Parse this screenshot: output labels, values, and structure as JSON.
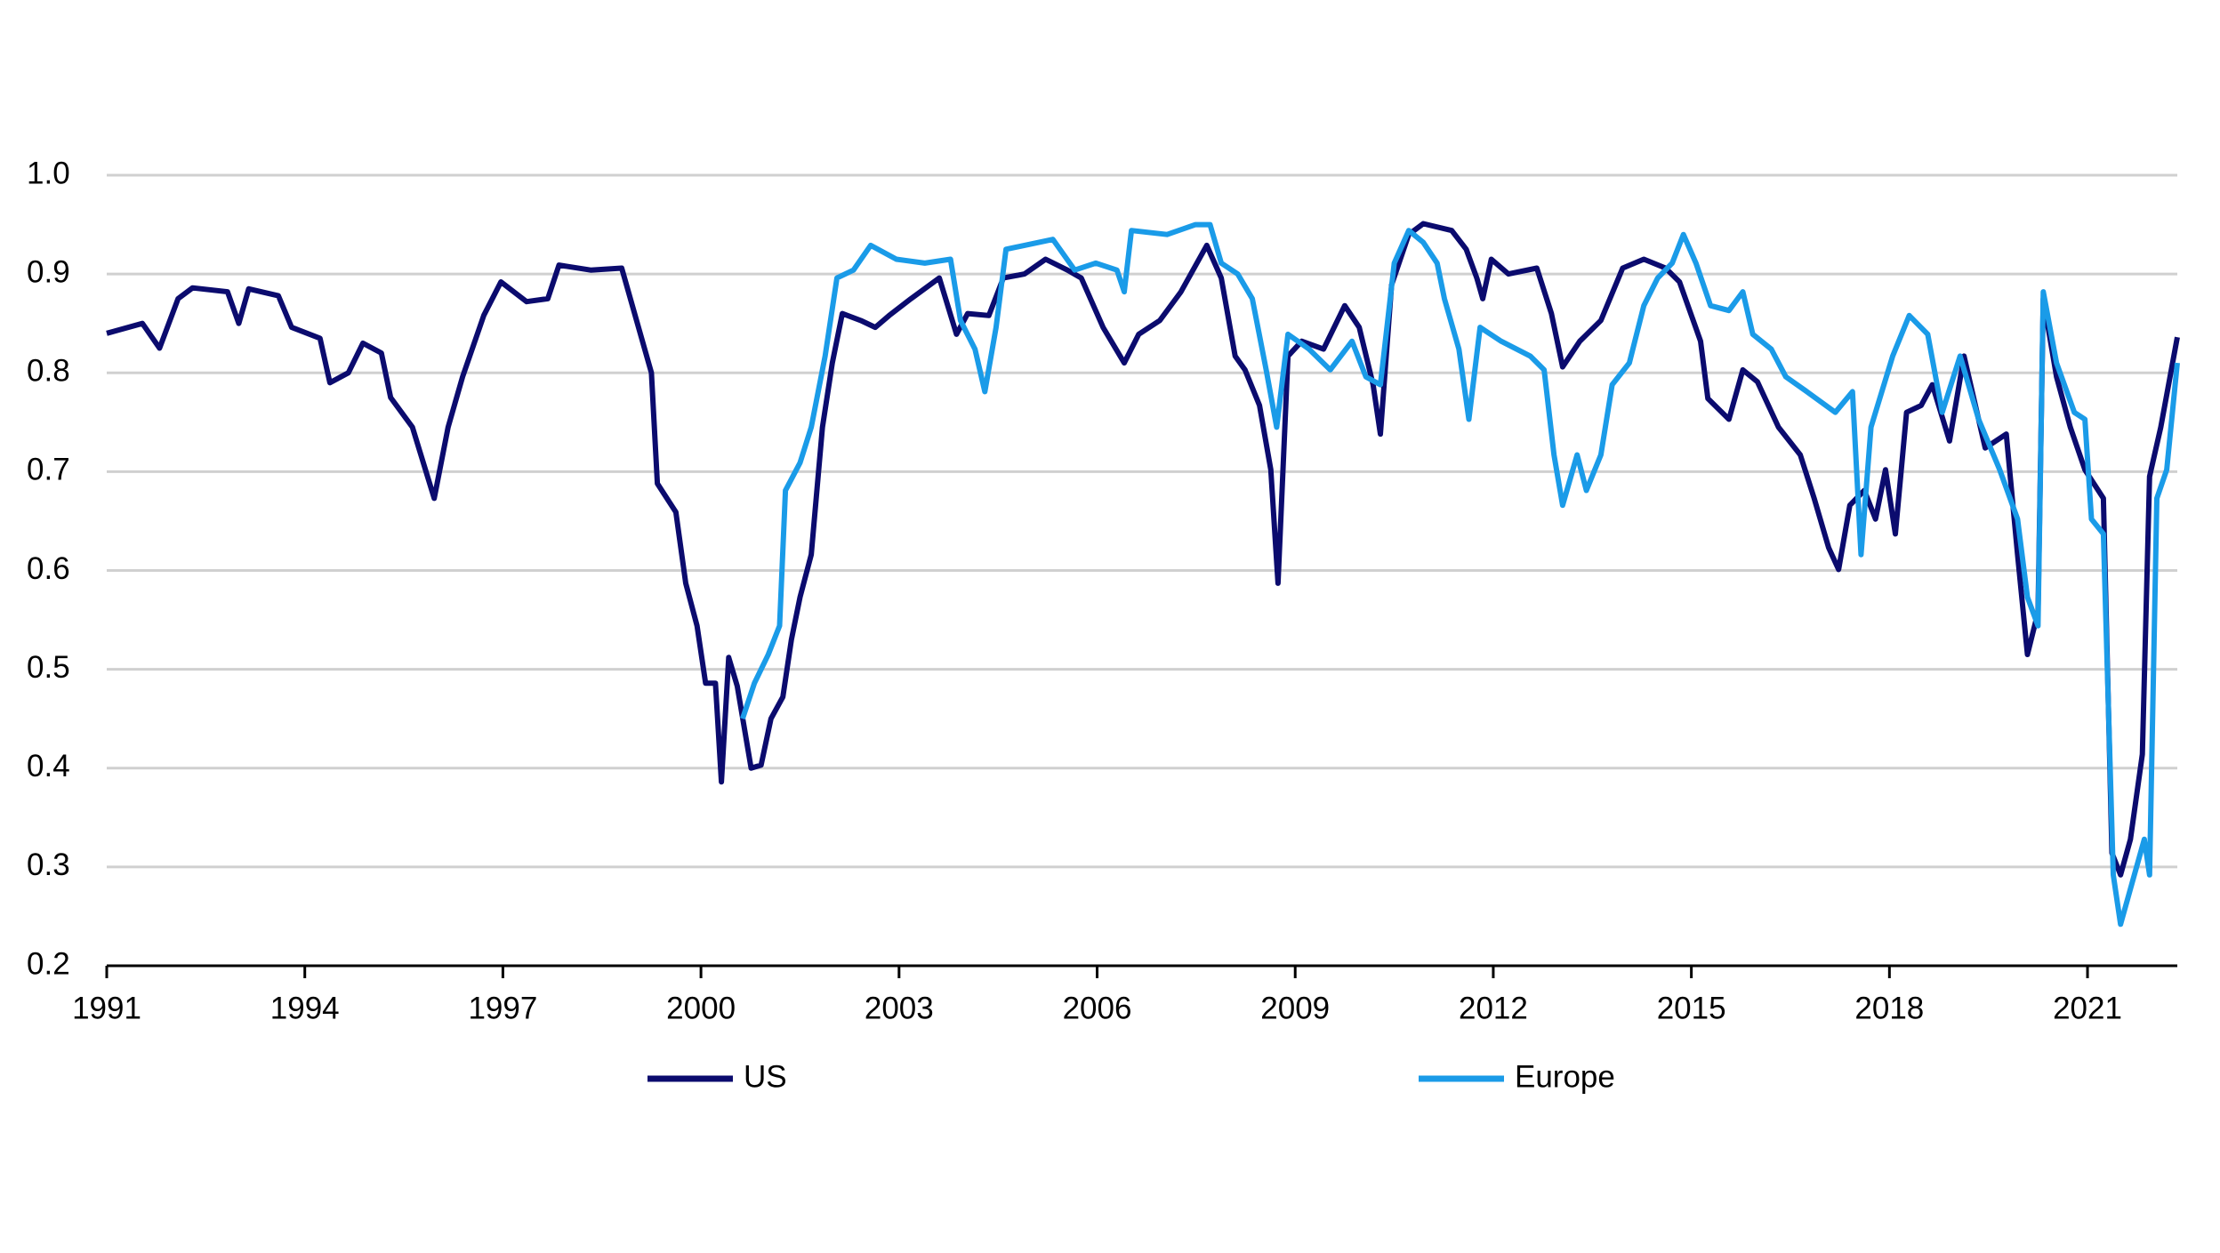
{
  "chart_data": {
    "type": "line",
    "xlim": [
      1991,
      2022.36
    ],
    "xticks": [
      1991,
      1994,
      1997,
      2000,
      2003,
      2006,
      2009,
      2012,
      2015,
      2018,
      2021
    ],
    "ylim": [
      0.2,
      1.0
    ],
    "yticks": [
      0.2,
      0.3,
      0.4,
      0.5,
      0.6,
      0.7,
      0.8,
      0.9,
      {
        "value": 1,
        "label": "1.0"
      }
    ],
    "grid": true,
    "legend": "bottom",
    "series": [
      {
        "name": "US",
        "color": "#0b0b6e",
        "x": [
          1991.0,
          1991.54,
          1991.8,
          1992.08,
          1992.3,
          1992.83,
          1993.0,
          1993.15,
          1993.6,
          1993.8,
          1994.23,
          1994.38,
          1994.66,
          1994.88,
          1995.16,
          1995.3,
          1995.63,
          1995.96,
          1996.17,
          1996.39,
          1996.71,
          1996.97,
          1997.36,
          1997.68,
          1997.85,
          1998.33,
          1998.8,
          1999.08,
          1999.25,
          1999.34,
          1999.62,
          1999.77,
          1999.94,
          2000.07,
          2000.22,
          2000.31,
          2000.42,
          2000.55,
          2000.76,
          2000.91,
          2001.06,
          2001.24,
          2001.37,
          2001.5,
          2001.67,
          2001.84,
          2001.99,
          2002.14,
          2002.42,
          2002.64,
          2002.85,
          2003.18,
          2003.61,
          2003.87,
          2004.04,
          2004.36,
          2004.58,
          2004.9,
          2005.22,
          2005.55,
          2005.76,
          2006.09,
          2006.41,
          2006.63,
          2006.95,
          2007.27,
          2007.66,
          2007.88,
          2008.09,
          2008.24,
          2008.46,
          2008.63,
          2008.74,
          2008.89,
          2009.1,
          2009.43,
          2009.75,
          2009.97,
          2010.18,
          2010.29,
          2010.46,
          2010.72,
          2010.94,
          2011.37,
          2011.59,
          2011.75,
          2011.84,
          2011.97,
          2012.23,
          2012.66,
          2012.88,
          2013.05,
          2013.31,
          2013.63,
          2013.96,
          2014.28,
          2014.61,
          2014.82,
          2015.14,
          2015.25,
          2015.57,
          2015.78,
          2016.0,
          2016.32,
          2016.65,
          2016.86,
          2017.08,
          2017.23,
          2017.4,
          2017.62,
          2017.79,
          2017.94,
          2018.09,
          2018.26,
          2018.48,
          2018.65,
          2018.91,
          2019.13,
          2019.45,
          2019.77,
          2019.94,
          2020.09,
          2020.25,
          2020.33,
          2020.53,
          2020.74,
          2020.96,
          2021.24,
          2021.37,
          2021.5,
          2021.65,
          2021.83,
          2021.94,
          2022.11,
          2022.36
        ],
        "values": [
          0.84,
          0.85,
          0.825,
          0.875,
          0.886,
          0.882,
          0.85,
          0.885,
          0.878,
          0.846,
          0.835,
          0.79,
          0.8,
          0.83,
          0.82,
          0.775,
          0.745,
          0.673,
          0.745,
          0.796,
          0.858,
          0.892,
          0.872,
          0.875,
          0.909,
          0.904,
          0.906,
          0.84,
          0.8,
          0.688,
          0.659,
          0.587,
          0.544,
          0.486,
          0.486,
          0.386,
          0.512,
          0.483,
          0.4,
          0.403,
          0.45,
          0.472,
          0.53,
          0.573,
          0.616,
          0.745,
          0.81,
          0.86,
          0.853,
          0.846,
          0.858,
          0.875,
          0.896,
          0.839,
          0.86,
          0.858,
          0.896,
          0.9,
          0.915,
          0.904,
          0.896,
          0.846,
          0.81,
          0.839,
          0.853,
          0.882,
          0.929,
          0.896,
          0.817,
          0.803,
          0.767,
          0.702,
          0.587,
          0.817,
          0.832,
          0.824,
          0.868,
          0.846,
          0.788,
          0.738,
          0.889,
          0.94,
          0.951,
          0.944,
          0.925,
          0.896,
          0.875,
          0.915,
          0.9,
          0.906,
          0.86,
          0.806,
          0.832,
          0.853,
          0.906,
          0.915,
          0.906,
          0.892,
          0.832,
          0.774,
          0.753,
          0.803,
          0.791,
          0.745,
          0.717,
          0.673,
          0.623,
          0.601,
          0.666,
          0.681,
          0.652,
          0.702,
          0.637,
          0.76,
          0.767,
          0.788,
          0.731,
          0.817,
          0.724,
          0.738,
          0.616,
          0.515,
          0.558,
          0.875,
          0.796,
          0.745,
          0.702,
          0.673,
          0.314,
          0.292,
          0.328,
          0.414,
          0.695,
          0.745,
          0.836
        ]
      },
      {
        "name": "Europe",
        "color": "#1a9be8",
        "x": [
          2000.63,
          2000.81,
          2001.02,
          2001.19,
          2001.28,
          2001.5,
          2001.67,
          2001.88,
          2002.06,
          2002.31,
          2002.57,
          2002.96,
          2003.39,
          2003.78,
          2003.93,
          2004.15,
          2004.3,
          2004.47,
          2004.62,
          2004.9,
          2005.33,
          2005.66,
          2005.98,
          2006.3,
          2006.41,
          2006.52,
          2007.06,
          2007.49,
          2007.71,
          2007.88,
          2008.13,
          2008.35,
          2008.56,
          2008.72,
          2008.89,
          2009.21,
          2009.53,
          2009.86,
          2010.07,
          2010.29,
          2010.5,
          2010.72,
          2010.94,
          2011.15,
          2011.26,
          2011.48,
          2011.63,
          2011.8,
          2012.12,
          2012.56,
          2012.77,
          2012.92,
          2013.05,
          2013.27,
          2013.41,
          2013.63,
          2013.8,
          2014.06,
          2014.28,
          2014.49,
          2014.71,
          2014.88,
          2015.07,
          2015.29,
          2015.57,
          2015.78,
          2015.93,
          2016.21,
          2016.43,
          2016.75,
          2017.18,
          2017.44,
          2017.57,
          2017.72,
          2018.05,
          2018.3,
          2018.58,
          2018.8,
          2019.07,
          2019.35,
          2019.67,
          2019.94,
          2020.09,
          2020.25,
          2020.33,
          2020.53,
          2020.8,
          2020.96,
          2021.06,
          2021.24,
          2021.39,
          2021.5,
          2021.71,
          2021.86,
          2021.94,
          2022.05,
          2022.2,
          2022.36
        ],
        "values": [
          0.45,
          0.486,
          0.515,
          0.544,
          0.681,
          0.709,
          0.745,
          0.817,
          0.896,
          0.904,
          0.929,
          0.915,
          0.911,
          0.915,
          0.853,
          0.824,
          0.781,
          0.846,
          0.925,
          0.929,
          0.935,
          0.904,
          0.911,
          0.904,
          0.882,
          0.944,
          0.94,
          0.95,
          0.95,
          0.911,
          0.9,
          0.875,
          0.803,
          0.745,
          0.839,
          0.824,
          0.803,
          0.832,
          0.796,
          0.788,
          0.911,
          0.944,
          0.932,
          0.911,
          0.875,
          0.824,
          0.753,
          0.846,
          0.832,
          0.817,
          0.803,
          0.717,
          0.666,
          0.717,
          0.681,
          0.717,
          0.788,
          0.81,
          0.868,
          0.896,
          0.911,
          0.94,
          0.911,
          0.868,
          0.863,
          0.882,
          0.839,
          0.824,
          0.796,
          0.781,
          0.76,
          0.781,
          0.616,
          0.745,
          0.817,
          0.858,
          0.839,
          0.76,
          0.817,
          0.753,
          0.702,
          0.652,
          0.573,
          0.544,
          0.882,
          0.81,
          0.76,
          0.753,
          0.652,
          0.637,
          0.292,
          0.242,
          0.292,
          0.328,
          0.292,
          0.673,
          0.702,
          0.81
        ]
      }
    ]
  }
}
